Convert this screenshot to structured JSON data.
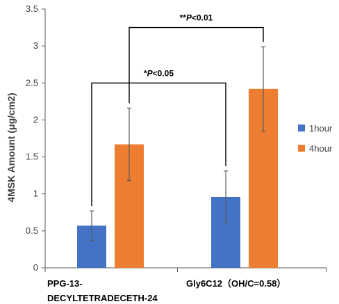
{
  "chart_data": {
    "type": "bar",
    "title": "",
    "xlabel": "",
    "ylabel": "4MSK Amount (μg/cm2)",
    "ylim": [
      0,
      3.5
    ],
    "yticks": [
      "0",
      "0.5",
      "1",
      "1.5",
      "2",
      "2.5",
      "3",
      "3.5"
    ],
    "grid": false,
    "legend": "right",
    "categories": [
      [
        "PPG-13-",
        "DECYLTETRADECETH-24"
      ],
      [
        "Gly6C12（OH/C=0.58）"
      ]
    ],
    "series": [
      {
        "name": "1hour",
        "color": "#4472C4",
        "values": [
          0.57,
          0.96
        ],
        "errors": [
          0.2,
          0.35
        ]
      },
      {
        "name": "4hour",
        "color": "#ED7D31",
        "values": [
          1.67,
          2.42
        ],
        "errors": [
          0.49,
          0.57
        ]
      }
    ],
    "annotations": [
      {
        "text": "*P<0.05",
        "prefix": "*",
        "italic": "P",
        "suffix": "<0.05",
        "from": [
          0,
          "1hour"
        ],
        "to": [
          1,
          "1hour"
        ],
        "level": 2.5
      },
      {
        "text": "**P<0.01",
        "prefix": "**",
        "italic": "P",
        "suffix": "<0.01",
        "from": [
          0,
          "4hour"
        ],
        "to": [
          1,
          "4hour"
        ],
        "level": 3.25
      }
    ]
  }
}
